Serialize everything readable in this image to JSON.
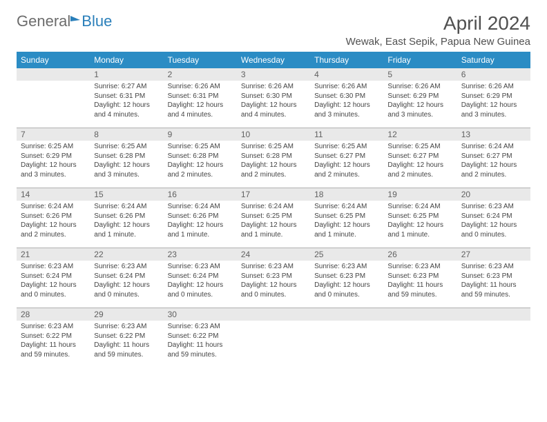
{
  "brand": {
    "general": "General",
    "blue": "Blue"
  },
  "title": "April 2024",
  "location": "Wewak, East Sepik, Papua New Guinea",
  "colors": {
    "header_bg": "#2b8cc4",
    "header_text": "#ffffff",
    "daynum_bg": "#e9e9e9",
    "text": "#444444",
    "brand_gray": "#6c6c6c",
    "brand_blue": "#2a7fba"
  },
  "weekdays": [
    "Sunday",
    "Monday",
    "Tuesday",
    "Wednesday",
    "Thursday",
    "Friday",
    "Saturday"
  ],
  "days": {
    "1": {
      "sunrise": "6:27 AM",
      "sunset": "6:31 PM",
      "daylight": "12 hours and 4 minutes."
    },
    "2": {
      "sunrise": "6:26 AM",
      "sunset": "6:31 PM",
      "daylight": "12 hours and 4 minutes."
    },
    "3": {
      "sunrise": "6:26 AM",
      "sunset": "6:30 PM",
      "daylight": "12 hours and 4 minutes."
    },
    "4": {
      "sunrise": "6:26 AM",
      "sunset": "6:30 PM",
      "daylight": "12 hours and 3 minutes."
    },
    "5": {
      "sunrise": "6:26 AM",
      "sunset": "6:29 PM",
      "daylight": "12 hours and 3 minutes."
    },
    "6": {
      "sunrise": "6:26 AM",
      "sunset": "6:29 PM",
      "daylight": "12 hours and 3 minutes."
    },
    "7": {
      "sunrise": "6:25 AM",
      "sunset": "6:29 PM",
      "daylight": "12 hours and 3 minutes."
    },
    "8": {
      "sunrise": "6:25 AM",
      "sunset": "6:28 PM",
      "daylight": "12 hours and 3 minutes."
    },
    "9": {
      "sunrise": "6:25 AM",
      "sunset": "6:28 PM",
      "daylight": "12 hours and 2 minutes."
    },
    "10": {
      "sunrise": "6:25 AM",
      "sunset": "6:28 PM",
      "daylight": "12 hours and 2 minutes."
    },
    "11": {
      "sunrise": "6:25 AM",
      "sunset": "6:27 PM",
      "daylight": "12 hours and 2 minutes."
    },
    "12": {
      "sunrise": "6:25 AM",
      "sunset": "6:27 PM",
      "daylight": "12 hours and 2 minutes."
    },
    "13": {
      "sunrise": "6:24 AM",
      "sunset": "6:27 PM",
      "daylight": "12 hours and 2 minutes."
    },
    "14": {
      "sunrise": "6:24 AM",
      "sunset": "6:26 PM",
      "daylight": "12 hours and 2 minutes."
    },
    "15": {
      "sunrise": "6:24 AM",
      "sunset": "6:26 PM",
      "daylight": "12 hours and 1 minute."
    },
    "16": {
      "sunrise": "6:24 AM",
      "sunset": "6:26 PM",
      "daylight": "12 hours and 1 minute."
    },
    "17": {
      "sunrise": "6:24 AM",
      "sunset": "6:25 PM",
      "daylight": "12 hours and 1 minute."
    },
    "18": {
      "sunrise": "6:24 AM",
      "sunset": "6:25 PM",
      "daylight": "12 hours and 1 minute."
    },
    "19": {
      "sunrise": "6:24 AM",
      "sunset": "6:25 PM",
      "daylight": "12 hours and 1 minute."
    },
    "20": {
      "sunrise": "6:23 AM",
      "sunset": "6:24 PM",
      "daylight": "12 hours and 0 minutes."
    },
    "21": {
      "sunrise": "6:23 AM",
      "sunset": "6:24 PM",
      "daylight": "12 hours and 0 minutes."
    },
    "22": {
      "sunrise": "6:23 AM",
      "sunset": "6:24 PM",
      "daylight": "12 hours and 0 minutes."
    },
    "23": {
      "sunrise": "6:23 AM",
      "sunset": "6:24 PM",
      "daylight": "12 hours and 0 minutes."
    },
    "24": {
      "sunrise": "6:23 AM",
      "sunset": "6:23 PM",
      "daylight": "12 hours and 0 minutes."
    },
    "25": {
      "sunrise": "6:23 AM",
      "sunset": "6:23 PM",
      "daylight": "12 hours and 0 minutes."
    },
    "26": {
      "sunrise": "6:23 AM",
      "sunset": "6:23 PM",
      "daylight": "11 hours and 59 minutes."
    },
    "27": {
      "sunrise": "6:23 AM",
      "sunset": "6:23 PM",
      "daylight": "11 hours and 59 minutes."
    },
    "28": {
      "sunrise": "6:23 AM",
      "sunset": "6:22 PM",
      "daylight": "11 hours and 59 minutes."
    },
    "29": {
      "sunrise": "6:23 AM",
      "sunset": "6:22 PM",
      "daylight": "11 hours and 59 minutes."
    },
    "30": {
      "sunrise": "6:23 AM",
      "sunset": "6:22 PM",
      "daylight": "11 hours and 59 minutes."
    }
  },
  "labels": {
    "sunrise": "Sunrise:",
    "sunset": "Sunset:",
    "daylight": "Daylight:"
  },
  "layout": {
    "start_weekday_offset": 1,
    "total_days": 30
  }
}
